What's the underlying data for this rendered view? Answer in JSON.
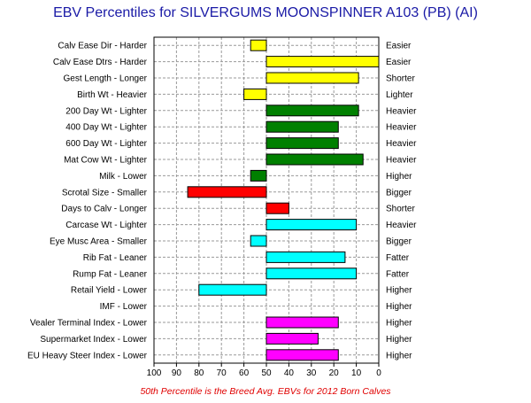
{
  "chart_data": {
    "type": "bar",
    "title": "EBV Percentiles for SILVERGUMS MOONSPINNER A103 (PB) (AI)",
    "footnote": "50th Percentile is the Breed Avg. EBVs for 2012 Born Calves",
    "xlim": [
      100,
      0
    ],
    "xticks": [
      100,
      90,
      80,
      70,
      60,
      50,
      40,
      30,
      20,
      10,
      0
    ],
    "grid": true,
    "baseline": 50,
    "traits": [
      {
        "left": "Calv Ease Dir - Harder",
        "right": "Easier",
        "value": 57,
        "color": "#ffff00"
      },
      {
        "left": "Calv Ease Dtrs - Harder",
        "right": "Easier",
        "value": 0,
        "color": "#ffff00"
      },
      {
        "left": "Gest Length - Longer",
        "right": "Shorter",
        "value": 9,
        "color": "#ffff00"
      },
      {
        "left": "Birth Wt - Heavier",
        "right": "Lighter",
        "value": 60,
        "color": "#ffff00"
      },
      {
        "left": "200 Day Wt - Lighter",
        "right": "Heavier",
        "value": 9,
        "color": "#008000"
      },
      {
        "left": "400 Day Wt - Lighter",
        "right": "Heavier",
        "value": 18,
        "color": "#008000"
      },
      {
        "left": "600 Day Wt - Lighter",
        "right": "Heavier",
        "value": 18,
        "color": "#008000"
      },
      {
        "left": "Mat Cow Wt - Lighter",
        "right": "Heavier",
        "value": 7,
        "color": "#008000"
      },
      {
        "left": "Milk - Lower",
        "right": "Higher",
        "value": 57,
        "color": "#008000"
      },
      {
        "left": "Scrotal Size - Smaller",
        "right": "Bigger",
        "value": 85,
        "color": "#ff0000"
      },
      {
        "left": "Days to Calv - Longer",
        "right": "Shorter",
        "value": 40,
        "color": "#ff0000"
      },
      {
        "left": "Carcase Wt - Lighter",
        "right": "Heavier",
        "value": 10,
        "color": "#00ffff"
      },
      {
        "left": "Eye Musc Area - Smaller",
        "right": "Bigger",
        "value": 57,
        "color": "#00ffff"
      },
      {
        "left": "Rib Fat - Leaner",
        "right": "Fatter",
        "value": 15,
        "color": "#00ffff"
      },
      {
        "left": "Rump Fat - Leaner",
        "right": "Fatter",
        "value": 10,
        "color": "#00ffff"
      },
      {
        "left": "Retail Yield - Lower",
        "right": "Higher",
        "value": 80,
        "color": "#00ffff"
      },
      {
        "left": "IMF - Lower",
        "right": "Higher",
        "value": null,
        "color": "#00ffff"
      },
      {
        "left": "Vealer Terminal Index - Lower",
        "right": "Higher",
        "value": 18,
        "color": "#ff00ff"
      },
      {
        "left": "Supermarket Index - Lower",
        "right": "Higher",
        "value": 27,
        "color": "#ff00ff"
      },
      {
        "left": "EU Heavy Steer Index - Lower",
        "right": "Higher",
        "value": 18,
        "color": "#ff00ff"
      }
    ]
  }
}
